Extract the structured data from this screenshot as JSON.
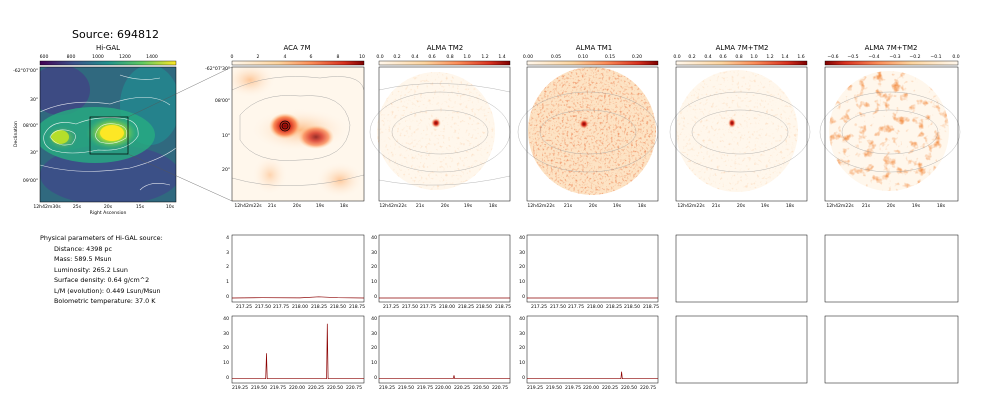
{
  "title": "Source: 694812",
  "panels": {
    "higal": "Hi-GAL",
    "aca7m": "ACA 7M",
    "tm2": "ALMA TM2",
    "tm1": "ALMA TM1",
    "c7mtm2a": "ALMA 7M+TM2",
    "c7mtm2b": "ALMA 7M+TM2"
  },
  "params": {
    "header": "Physical parameters of Hi-GAL source:",
    "distance": "Distance: 4398 pc",
    "mass": "Mass: 589.5 Msun",
    "luminosity": "Luminosity: 265.2 Lsun",
    "surface_density": "Surface density: 0.64 g/cm^2",
    "lm": "L/M (evolution): 0.449 Lsun/Msun",
    "tbol": "Bolometric temperature: 37.0 K"
  },
  "higal_axes": {
    "xlabel": "Right Ascension",
    "ylabel": "Declination",
    "xticks": [
      "12h42m30s",
      "25s",
      "20s",
      "15s",
      "10s"
    ],
    "yticks": [
      "-62°07'00\"",
      "30\"",
      "08'00\"",
      "30\"",
      "09'00\""
    ],
    "colorbar_ticks": [
      "600",
      "800",
      "1000",
      "1200",
      "1400"
    ]
  },
  "zoom_axes": {
    "aca_yticks": [
      "-62°07'30\"",
      "08'00\"",
      "10\"",
      "20\""
    ],
    "aca_xticks": [
      "12h42m22s",
      "21s",
      "20s",
      "19s",
      "18s"
    ],
    "alma_xticks": [
      "12h42m22s",
      "21s",
      "20s",
      "19s",
      "18s"
    ]
  },
  "colorbars": {
    "aca7m": [
      "0",
      "2",
      "4",
      "6",
      "8",
      "10"
    ],
    "tm2": [
      "0.0",
      "0.2",
      "0.4",
      "0.6",
      "0.8",
      "1.0",
      "1.2",
      "1.4"
    ],
    "tm1": [
      "0.00",
      "0.05",
      "0.10",
      "0.15",
      "0.20"
    ],
    "c7mtm2a": [
      "0.0",
      "0.2",
      "0.4",
      "0.6",
      "0.8",
      "1.0",
      "1.2",
      "1.4",
      "1.6"
    ],
    "c7mtm2b": [
      "−0.6",
      "−0.5",
      "−0.4",
      "−0.3",
      "−0.2",
      "−0.1",
      "0.0"
    ]
  },
  "spectra": {
    "row1_yticks_a": [
      "0",
      "1",
      "2",
      "3",
      "4"
    ],
    "row1_yticks_b": [
      "0",
      "10",
      "20",
      "30",
      "40"
    ],
    "row1_xticks": [
      "217.25",
      "217.50",
      "217.75",
      "218.00",
      "218.25",
      "218.50",
      "218.75"
    ],
    "row2_yticks": [
      "0",
      "10",
      "20",
      "30",
      "40"
    ],
    "row2_xticks": [
      "219.25",
      "219.50",
      "219.75",
      "220.00",
      "220.25",
      "220.50",
      "220.75"
    ]
  },
  "colors": {
    "spectrum_line": "#8b0000",
    "box_line": "#000000"
  },
  "chart_data": [
    {
      "type": "line",
      "panel": "ACA 7M spectrum, row 1",
      "x": [
        217.1,
        217.5,
        218.0,
        218.25,
        218.5,
        218.85
      ],
      "y": [
        0,
        0.02,
        0.01,
        0.08,
        0.02,
        0
      ],
      "ylim": [
        0,
        4
      ],
      "xlim": [
        217.1,
        218.85
      ]
    },
    {
      "type": "line",
      "panel": "ALMA TM2 spectrum, row 1",
      "x": [
        217.1,
        218.85
      ],
      "y": [
        0,
        0
      ],
      "ylim": [
        0,
        40
      ],
      "xlim": [
        217.1,
        218.85
      ]
    },
    {
      "type": "line",
      "panel": "ALMA TM1 spectrum, row 1",
      "x": [
        217.1,
        218.85
      ],
      "y": [
        0,
        0
      ],
      "ylim": [
        0,
        40
      ],
      "xlim": [
        217.1,
        218.85
      ]
    },
    {
      "type": "line",
      "panel": "ACA 7M spectrum, row 2",
      "x": [
        219.1,
        219.56,
        219.57,
        219.58,
        220.39,
        220.4,
        220.41,
        220.9
      ],
      "y": [
        0.2,
        0.2,
        17.5,
        0.2,
        0.2,
        37.5,
        0.2,
        0.2
      ],
      "ylim": [
        0,
        40
      ],
      "xlim": [
        219.1,
        220.9
      ]
    },
    {
      "type": "line",
      "panel": "ALMA TM2 spectrum, row 2",
      "x": [
        219.1,
        220.12,
        220.13,
        220.14,
        220.9
      ],
      "y": [
        0.2,
        0.2,
        2.5,
        0.2,
        0.2
      ],
      "ylim": [
        0,
        40
      ],
      "xlim": [
        219.1,
        220.9
      ]
    },
    {
      "type": "line",
      "panel": "ALMA TM1 spectrum, row 2",
      "x": [
        219.1,
        220.39,
        220.4,
        220.41,
        220.9
      ],
      "y": [
        0.2,
        0.2,
        5,
        0.2,
        0.2
      ],
      "ylim": [
        0,
        40
      ],
      "xlim": [
        219.1,
        220.9
      ]
    }
  ]
}
